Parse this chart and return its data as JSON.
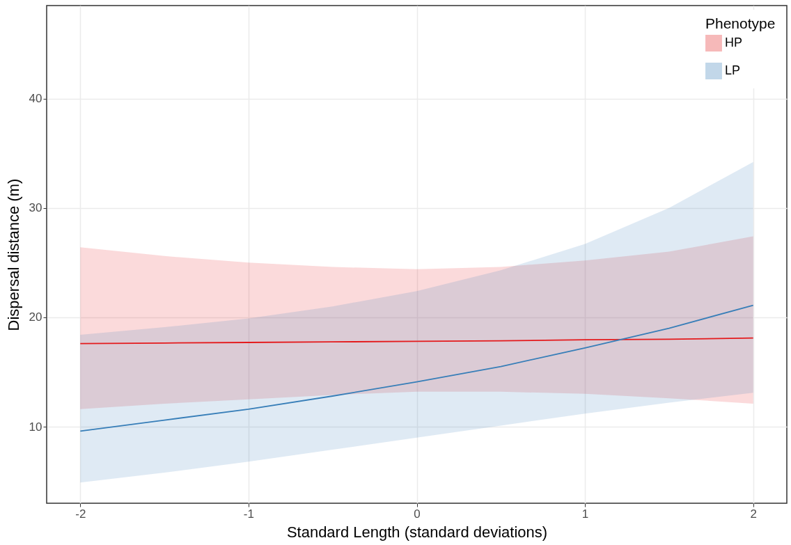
{
  "chart_data": {
    "type": "line",
    "xlabel": "Standard Length (standard deviations)",
    "ylabel": "Dispersal distance (m)",
    "legend_title": "Phenotype",
    "legend": "top right",
    "grid": true,
    "x": [
      -2,
      -1.5,
      -1,
      -0.5,
      0,
      0.5,
      1,
      1.5,
      2
    ],
    "xlim": [
      -2.2,
      2.2
    ],
    "xticks": [
      -2,
      -1,
      0,
      1,
      2
    ],
    "ylim": [
      3,
      48.5
    ],
    "yticks": [
      10,
      20,
      30,
      40
    ],
    "series": [
      {
        "name": "HP",
        "color": "#e41a1c",
        "values": [
          17.6,
          17.65,
          17.7,
          17.75,
          17.8,
          17.85,
          17.95,
          18.0,
          18.1
        ],
        "lower": [
          11.6,
          12.1,
          12.5,
          12.9,
          13.2,
          13.2,
          13.0,
          12.6,
          12.1
        ],
        "upper": [
          26.4,
          25.6,
          25.0,
          24.6,
          24.4,
          24.6,
          25.2,
          26.0,
          27.4
        ]
      },
      {
        "name": "LP",
        "color": "#377eb8",
        "values": [
          9.6,
          10.6,
          11.6,
          12.8,
          14.1,
          15.5,
          17.2,
          19.0,
          21.1
        ],
        "lower": [
          4.9,
          5.8,
          6.8,
          7.9,
          9.0,
          10.1,
          11.2,
          12.2,
          13.1
        ],
        "upper": [
          18.4,
          19.1,
          19.9,
          21.0,
          22.4,
          24.3,
          26.7,
          30.0,
          34.2
        ]
      }
    ]
  }
}
